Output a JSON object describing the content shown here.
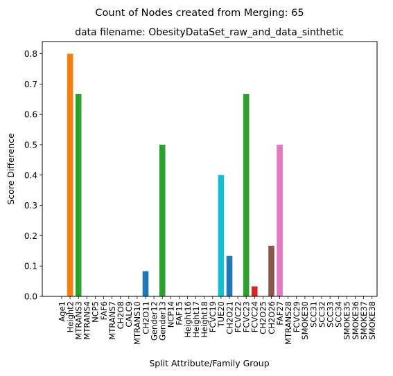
{
  "chart_data": {
    "type": "bar",
    "suptitle": "Count of Nodes created from Merging: 65",
    "title": "data filename: ObesityDataSet_raw_and_data_sinthetic",
    "xlabel": "Split Attribute/Family Group",
    "ylabel": "Score Difference",
    "ylim": [
      0,
      0.84
    ],
    "yticks": [
      0.0,
      0.1,
      0.2,
      0.3,
      0.4,
      0.5,
      0.6,
      0.7,
      0.8
    ],
    "ytick_labels": [
      "0.0",
      "0.1",
      "0.2",
      "0.3",
      "0.4",
      "0.5",
      "0.6",
      "0.7",
      "0.8"
    ],
    "grid": false,
    "categories": [
      "Age1",
      "Height2",
      "MTRANS3",
      "MTRANS4",
      "NCP5",
      "FAF6",
      "MTRANS7",
      "CH2O8",
      "CALC9",
      "MTRANS10",
      "CH2O11",
      "Gender12",
      "Gender13",
      "NCP14",
      "FAF15",
      "Height16",
      "Height17",
      "Height18",
      "FCVC19",
      "TUE20",
      "CH2O21",
      "FCVC22",
      "FCVC23",
      "FCVC24",
      "CH2O25",
      "CH2O26",
      "FAF27",
      "MTRANS28",
      "FCVC29",
      "SMOKE30",
      "SCC31",
      "SCC32",
      "SCC33",
      "SCC34",
      "SMOKE35",
      "SMOKE36",
      "SMOKE37",
      "SMOKE38"
    ],
    "values": [
      0,
      0.8,
      0.667,
      0,
      0,
      0,
      0,
      0,
      0,
      0,
      0.083,
      0,
      0.5,
      0,
      0,
      0,
      0,
      0,
      0,
      0.4,
      0.133,
      0,
      0.667,
      0.033,
      0,
      0.167,
      0.5,
      0,
      0,
      0,
      0,
      0,
      0,
      0,
      0,
      0,
      0,
      0
    ],
    "bar_colors": [
      "#1f77b4",
      "#ff7f0e",
      "#2ca02c",
      "#2ca02c",
      "#1f77b4",
      "#1f77b4",
      "#1f77b4",
      "#1f77b4",
      "#1f77b4",
      "#1f77b4",
      "#1f77b4",
      "#2ca02c",
      "#2ca02c",
      "#1f77b4",
      "#1f77b4",
      "#1f77b4",
      "#1f77b4",
      "#1f77b4",
      "#17becf",
      "#17becf",
      "#1f77b4",
      "#2ca02c",
      "#2ca02c",
      "#d62728",
      "#8c564b",
      "#8c564b",
      "#e377c2",
      "#e377c2",
      "#1f77b4",
      "#1f77b4",
      "#1f77b4",
      "#1f77b4",
      "#1f77b4",
      "#1f77b4",
      "#1f77b4",
      "#1f77b4",
      "#1f77b4",
      "#1f77b4"
    ]
  }
}
